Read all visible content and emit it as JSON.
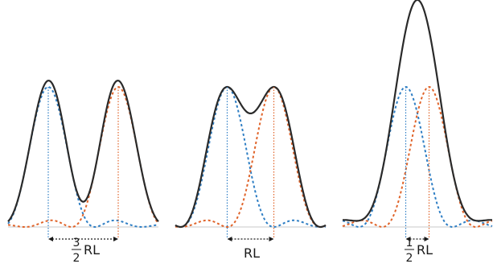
{
  "panels": [
    {
      "label": {
        "numerator": "3",
        "denominator": "2",
        "unit": "RL"
      },
      "separation_in_RL": 1.5,
      "sum_peak_ratio": 1.0
    },
    {
      "label": {
        "text": "RL"
      },
      "separation_in_RL": 1.0,
      "sum_peak_ratio": 1.0
    },
    {
      "label": {
        "numerator": "1",
        "denominator": "2",
        "unit": "RL"
      },
      "separation_in_RL": 0.5,
      "sum_peak_ratio": 1.6
    }
  ],
  "colors": {
    "sum": "#2a2a2a",
    "left_source": "#2e7ec4",
    "right_source": "#e0642a",
    "baseline": "#c8c8c8",
    "arrow": "#1a1a1a"
  }
}
